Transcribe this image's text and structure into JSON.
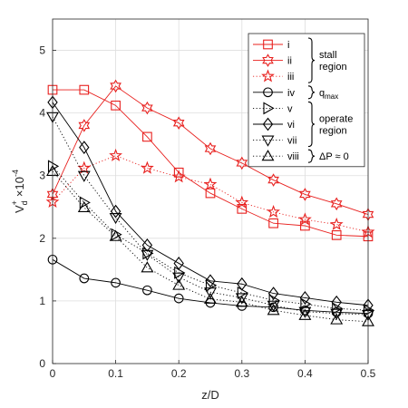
{
  "chart_data": {
    "type": "line",
    "xlabel": "z/D",
    "ylabel_main": "V",
    "ylabel_sup": "+",
    "ylabel_sub": "d",
    "ylabel_scale": "×10",
    "ylabel_scale_exp": "-4",
    "xlim": [
      0,
      0.5
    ],
    "ylim": [
      0,
      5.5
    ],
    "xticks": [
      "0",
      "0.1",
      "0.2",
      "0.3",
      "0.4",
      "0.5"
    ],
    "yticks": [
      "0",
      "1",
      "2",
      "3",
      "4",
      "5"
    ],
    "grid": true,
    "legend_position": "top-right",
    "x": [
      0,
      0.05,
      0.1,
      0.15,
      0.2,
      0.25,
      0.3,
      0.35,
      0.4,
      0.45,
      0.5
    ],
    "series": [
      {
        "name": "i",
        "color": "#e8201e",
        "dash": "solid",
        "marker": "square",
        "values": [
          4.37,
          4.37,
          4.12,
          3.62,
          3.05,
          2.72,
          2.47,
          2.24,
          2.2,
          2.05,
          2.03
        ]
      },
      {
        "name": "ii",
        "color": "#e8201e",
        "dash": "solid",
        "marker": "hexagram",
        "values": [
          2.7,
          3.8,
          4.43,
          4.08,
          3.84,
          3.43,
          3.2,
          2.93,
          2.7,
          2.55,
          2.38
        ]
      },
      {
        "name": "iii",
        "color": "#e8201e",
        "dash": "dotted",
        "marker": "pentagram",
        "values": [
          2.58,
          3.12,
          3.32,
          3.12,
          2.98,
          2.86,
          2.57,
          2.42,
          2.3,
          2.22,
          2.1
        ]
      },
      {
        "name": "iv",
        "color": "#000000",
        "dash": "solid",
        "marker": "circle",
        "values": [
          1.66,
          1.36,
          1.29,
          1.17,
          1.04,
          0.97,
          0.92,
          0.9,
          0.85,
          0.82,
          0.8
        ]
      },
      {
        "name": "v",
        "color": "#000000",
        "dash": "dotted",
        "marker": "triangle-right",
        "values": [
          3.15,
          2.57,
          2.06,
          1.76,
          1.45,
          1.25,
          1.13,
          1.01,
          0.95,
          0.88,
          0.85
        ]
      },
      {
        "name": "vi",
        "color": "#000000",
        "dash": "solid",
        "marker": "diamond",
        "values": [
          4.17,
          3.45,
          2.43,
          1.89,
          1.6,
          1.32,
          1.27,
          1.12,
          1.05,
          0.98,
          0.93
        ]
      },
      {
        "name": "vii",
        "color": "#000000",
        "dash": "dotted",
        "marker": "triangle-down",
        "values": [
          3.94,
          3.0,
          2.33,
          1.74,
          1.38,
          1.14,
          1.05,
          0.93,
          0.83,
          0.8,
          0.78
        ]
      },
      {
        "name": "viii",
        "color": "#000000",
        "dash": "dotted",
        "marker": "triangle-up",
        "values": [
          3.07,
          2.49,
          2.03,
          1.53,
          1.25,
          1.03,
          0.98,
          0.85,
          0.77,
          0.7,
          0.67
        ]
      }
    ],
    "legend_groups": [
      {
        "label_lines": [
          "stall",
          "region"
        ],
        "covers": [
          0,
          2
        ]
      },
      {
        "label_lines": [
          "q"
        ],
        "sub": "max",
        "covers": [
          3,
          3
        ]
      },
      {
        "label_lines": [
          "operate",
          "region"
        ],
        "covers": [
          4,
          6
        ]
      },
      {
        "label_lines": [
          "ΔP  ≈ 0"
        ],
        "covers": [
          7,
          7
        ]
      }
    ]
  }
}
